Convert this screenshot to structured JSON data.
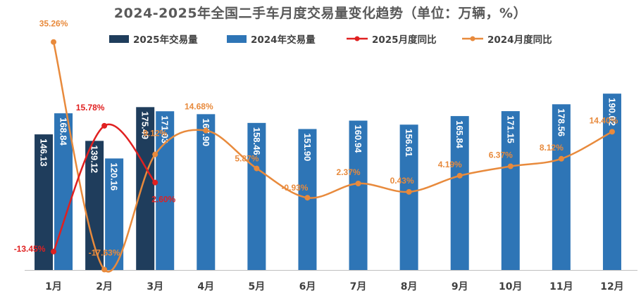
{
  "title": "2024-2025年全国二手车月度交易量变化趋势（单位：万辆，%）",
  "colors": {
    "bar2025": "#1f3d5c",
    "bar2024": "#2e75b6",
    "line2025": "#e02020",
    "line2024": "#e88a3c",
    "axis": "#bfbfbf",
    "tick": "#404040"
  },
  "legend": [
    {
      "label": "2025年交易量",
      "kind": "bar",
      "color_key": "bar2025"
    },
    {
      "label": "2024年交易量",
      "kind": "bar",
      "color_key": "bar2024"
    },
    {
      "label": "2025月度同比",
      "kind": "line",
      "color_key": "line2025"
    },
    {
      "label": "2024月度同比",
      "kind": "line",
      "color_key": "line2024"
    }
  ],
  "chart_data": {
    "type": "bar",
    "categories": [
      "1月",
      "2月",
      "3月",
      "4月",
      "5月",
      "6月",
      "7月",
      "8月",
      "9月",
      "10月",
      "11月",
      "12月"
    ],
    "series": [
      {
        "name": "2025年交易量",
        "kind": "bar",
        "values": [
          146.13,
          139.12,
          175.49,
          null,
          null,
          null,
          null,
          null,
          null,
          null,
          null,
          null
        ],
        "labels": [
          "146.13",
          "139.12",
          "175.49"
        ]
      },
      {
        "name": "2024年交易量",
        "kind": "bar",
        "values": [
          168.84,
          120.16,
          171.03,
          167.9,
          158.46,
          151.9,
          160.94,
          156.61,
          165.84,
          171.15,
          178.56,
          190.02
        ],
        "labels": [
          "168.84",
          "120.16",
          "171.03",
          "167.90",
          "158.46",
          "151.90",
          "160.94",
          "156.61",
          "165.84",
          "171.15",
          "178.56",
          "190.02"
        ]
      },
      {
        "name": "2025月度同比",
        "kind": "line",
        "unit": "%",
        "values": [
          -13.45,
          15.78,
          2.6,
          null,
          null,
          null,
          null,
          null,
          null,
          null,
          null,
          null
        ],
        "labels": [
          "-13.45%",
          "15.78%",
          "2.60%"
        ]
      },
      {
        "name": "2024月度同比",
        "kind": "line",
        "unit": "%",
        "values": [
          35.26,
          -17.63,
          9.12,
          14.68,
          5.87,
          -0.93,
          2.37,
          0.43,
          4.19,
          6.37,
          8.12,
          14.4
        ],
        "labels": [
          "35.26%",
          "-17.63%",
          "9.12%",
          "14.68%",
          "5.87%",
          "-0.93%",
          "2.37%",
          "0.43%",
          "4.19%",
          "6.37%",
          "8.12%",
          "14.40%"
        ]
      }
    ],
    "bar_ylim": [
      0,
      200
    ],
    "line_ylim": [
      -25,
      40
    ],
    "legend_position": "top",
    "grid": false
  }
}
